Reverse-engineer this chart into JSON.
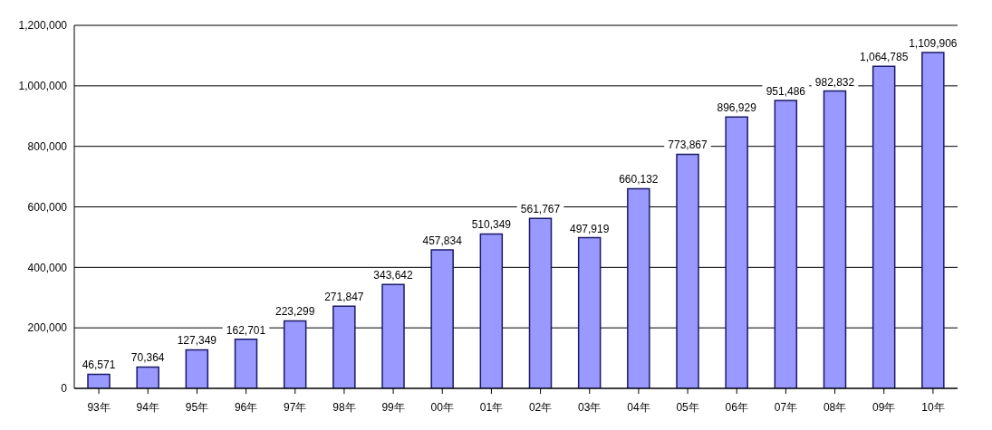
{
  "chart_data": {
    "type": "bar",
    "categories": [
      "93年",
      "94年",
      "95年",
      "96年",
      "97年",
      "98年",
      "99年",
      "00年",
      "01年",
      "02年",
      "03年",
      "04年",
      "05年",
      "06年",
      "07年",
      "08年",
      "09年",
      "10年"
    ],
    "values": [
      46571,
      70364,
      127349,
      162701,
      223299,
      271847,
      343642,
      457834,
      510349,
      561767,
      497919,
      660132,
      773867,
      896929,
      951486,
      982832,
      1064785,
      1109906
    ],
    "color": "#9999ff",
    "ylim": [
      0,
      1200000
    ],
    "yticks": [
      0,
      {
        "value": 200000,
        "label": "200,000"
      },
      {
        "value": 400000,
        "label": "400,000"
      },
      {
        "value": 600000,
        "label": "600,000"
      },
      {
        "value": 800000,
        "label": "800,000"
      },
      {
        "value": 1000000,
        "label": "1,000,000"
      },
      {
        "value": 1200000,
        "label": "1,200,000"
      }
    ],
    "grid": "y",
    "value_labels": [
      "46,571",
      "70,364",
      "127,349",
      "162,701",
      "223,299",
      "271,847",
      "343,642",
      "457,834",
      "510,349",
      "561,767",
      "497,919",
      "660,132",
      "773,867",
      "896,929",
      "951,486",
      "982,832",
      "1,064,785",
      "1,109,906"
    ]
  }
}
